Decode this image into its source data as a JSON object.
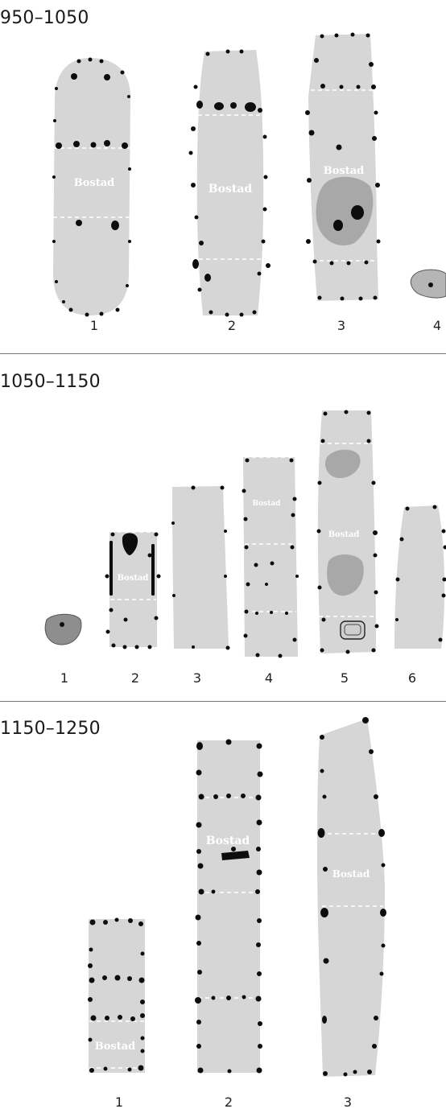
{
  "periods": [
    {
      "label": "950–1050",
      "houses": [
        {
          "number": "1",
          "room_label": "Bostad"
        },
        {
          "number": "2",
          "room_label": "Bostad"
        },
        {
          "number": "3",
          "room_label": "Bostad"
        },
        {
          "number": "4",
          "room_label": ""
        }
      ]
    },
    {
      "label": "1050–1150",
      "houses": [
        {
          "number": "1",
          "room_label": ""
        },
        {
          "number": "2",
          "room_label": "Bostad"
        },
        {
          "number": "3",
          "room_label": ""
        },
        {
          "number": "4",
          "room_label": "Bostad"
        },
        {
          "number": "5",
          "room_label": "Bostad"
        },
        {
          "number": "6",
          "room_label": ""
        }
      ]
    },
    {
      "label": "1150–1250",
      "houses": [
        {
          "number": "1",
          "room_label": "Bostad"
        },
        {
          "number": "2",
          "room_label": "Bostad"
        },
        {
          "number": "3",
          "room_label": "Bostad"
        }
      ]
    }
  ],
  "colors": {
    "floor": "#d6d6d6",
    "posthole": "#0d0d0d",
    "hearth": "#8e8e8e",
    "divider": "#ffffff"
  }
}
